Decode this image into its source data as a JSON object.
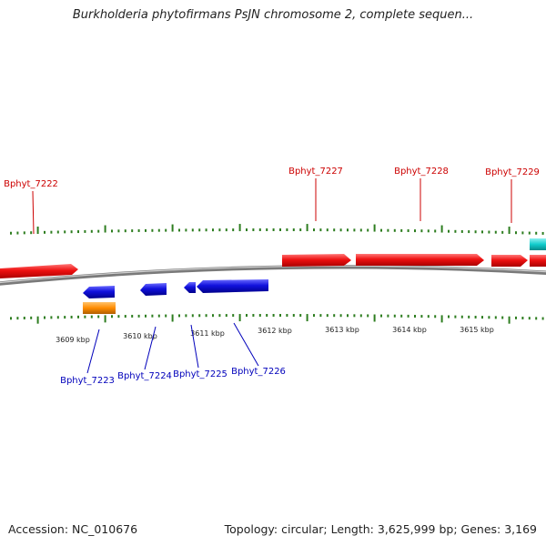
{
  "title": "Burkholderia phytofirmans PsJN chromosome 2, complete sequen...",
  "footer": {
    "accession": "Accession: NC_010676",
    "topology": "Topology: circular; Length: 3,625,999 bp; Genes: 3,169"
  },
  "colors": {
    "forward": "#ee1111",
    "reverse": "#1111dd",
    "other": "#ff8c00",
    "rna": "#11cccc",
    "backbone": "#7a7a7a",
    "tick": "#2d7d1f",
    "label_forward": "#cc0000",
    "label_reverse": "#0000bb"
  },
  "kbp_ticks": [
    "3609 kbp",
    "3610 kbp",
    "3611 kbp",
    "3612 kbp",
    "3613 kbp",
    "3614 kbp",
    "3615 kbp"
  ],
  "top_labels": [
    "Bphyt_7222",
    "Bphyt_7227",
    "Bphyt_7228",
    "Bphyt_7229"
  ],
  "bottom_labels": [
    "Bphyt_7223",
    "Bphyt_7224",
    "Bphyt_7225",
    "Bphyt_7226"
  ]
}
